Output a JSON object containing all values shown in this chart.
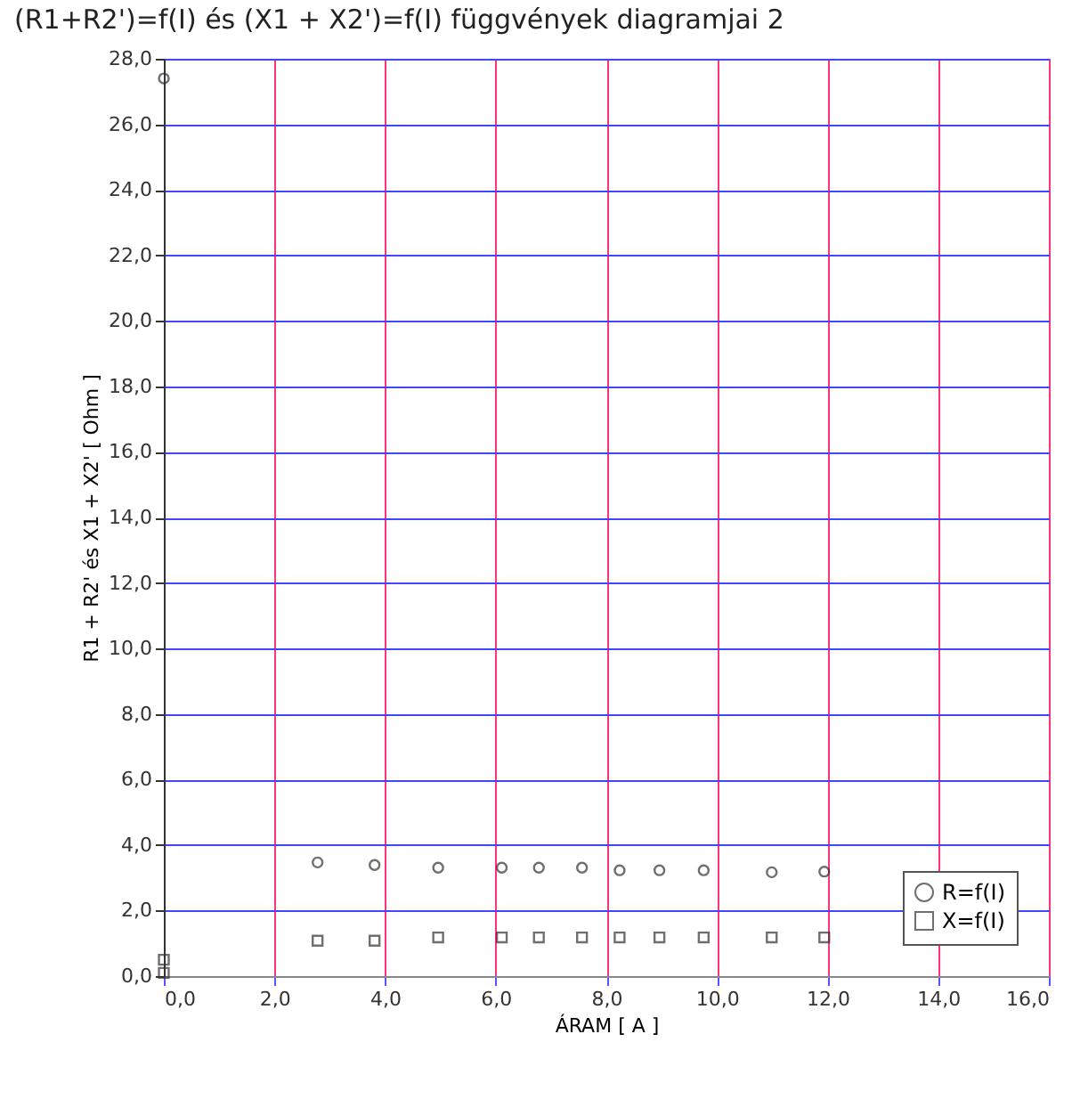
{
  "chart_data": {
    "type": "scatter",
    "title": "(R1+R2')=f(I) és (X1 + X2')=f(I) függvények diagramjai  2",
    "xlabel": "ÁRAM   [ A ]",
    "ylabel": "R1 + R2' és X1 + X2'   [ Ohm ]",
    "series": [
      {
        "name": "R=f(I)",
        "color": "#333333",
        "marker": "circle",
        "x": [
          0,
          2.78,
          3.81,
          4.96,
          6.11,
          6.78,
          7.56,
          8.24,
          8.96,
          9.76,
          10.99,
          11.94
        ],
        "values": [
          27.4,
          3.47,
          3.39,
          3.31,
          3.31,
          3.31,
          3.31,
          3.23,
          3.23,
          3.23,
          3.17,
          3.19
        ]
      },
      {
        "name": "X=f(I)",
        "color": "#333333",
        "marker": "square",
        "x": [
          0,
          0,
          2.78,
          3.81,
          4.96,
          6.11,
          6.78,
          7.56,
          8.24,
          8.96,
          9.76,
          10.99,
          11.94
        ],
        "values": [
          0.5,
          0.1,
          1.08,
          1.08,
          1.18,
          1.18,
          1.18,
          1.18,
          1.18,
          1.18,
          1.18,
          1.18,
          1.18
        ]
      }
    ],
    "xlim": [
      0,
      16
    ],
    "xticks": [
      {
        "value": 0,
        "label": "0,0"
      },
      {
        "value": 2,
        "label": "2,0"
      },
      {
        "value": 4,
        "label": "4,0"
      },
      {
        "value": 6,
        "label": "6,0"
      },
      {
        "value": 8,
        "label": "8,0"
      },
      {
        "value": 10,
        "label": "10,0"
      },
      {
        "value": 12,
        "label": "12,0"
      },
      {
        "value": 14,
        "label": "14,0"
      },
      {
        "value": 16,
        "label": "16,0"
      }
    ],
    "ylim": [
      0,
      28
    ],
    "yticks": [
      {
        "value": 0,
        "label": "0,0"
      },
      {
        "value": 2,
        "label": "2,0"
      },
      {
        "value": 4,
        "label": "4,0"
      },
      {
        "value": 6,
        "label": "6,0"
      },
      {
        "value": 8,
        "label": "8,0"
      },
      {
        "value": 10,
        "label": "10,0"
      },
      {
        "value": 12,
        "label": "12,0"
      },
      {
        "value": 14,
        "label": "14,0"
      },
      {
        "value": 16,
        "label": "16,0"
      },
      {
        "value": 18,
        "label": "18,0"
      },
      {
        "value": 20,
        "label": "20,0"
      },
      {
        "value": 22,
        "label": "22,0"
      },
      {
        "value": 24,
        "label": "24,0"
      },
      {
        "value": 26,
        "label": "26,0"
      },
      {
        "value": 28,
        "label": "28,0"
      }
    ],
    "grid": true,
    "legend": "bottom right"
  }
}
